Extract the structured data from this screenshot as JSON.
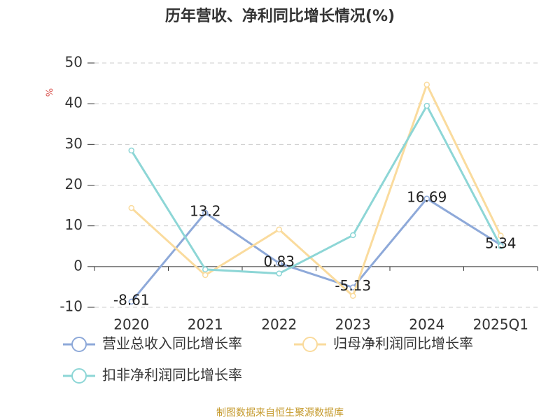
{
  "chart_data": {
    "type": "line",
    "title": "历年营收、净利同比增长情况(%)",
    "y_label": "%",
    "source": "制图数据来自恒生聚源数据库",
    "categories": [
      "2020",
      "2021",
      "2022",
      "2023",
      "2024",
      "2025Q1"
    ],
    "series": [
      {
        "name": "营业总收入同比增长率",
        "color": "#8ea9d9",
        "values": [
          -8.61,
          13.2,
          0.83,
          -5.13,
          16.69,
          5.34
        ],
        "labels": true
      },
      {
        "name": "归母净利润同比增长率",
        "color": "#fadb9d",
        "values": [
          14.4,
          -2.1,
          9.1,
          -7.2,
          44.7,
          7.6
        ],
        "labels": false
      },
      {
        "name": "扣非净利润同比增长率",
        "color": "#8dd6d6",
        "values": [
          28.5,
          -0.7,
          -1.7,
          7.7,
          39.5,
          5.0
        ],
        "labels": false
      }
    ],
    "ylim": [
      -10,
      50
    ],
    "yticks": [
      -10,
      0,
      10,
      20,
      30,
      40,
      50
    ],
    "grid": true
  }
}
